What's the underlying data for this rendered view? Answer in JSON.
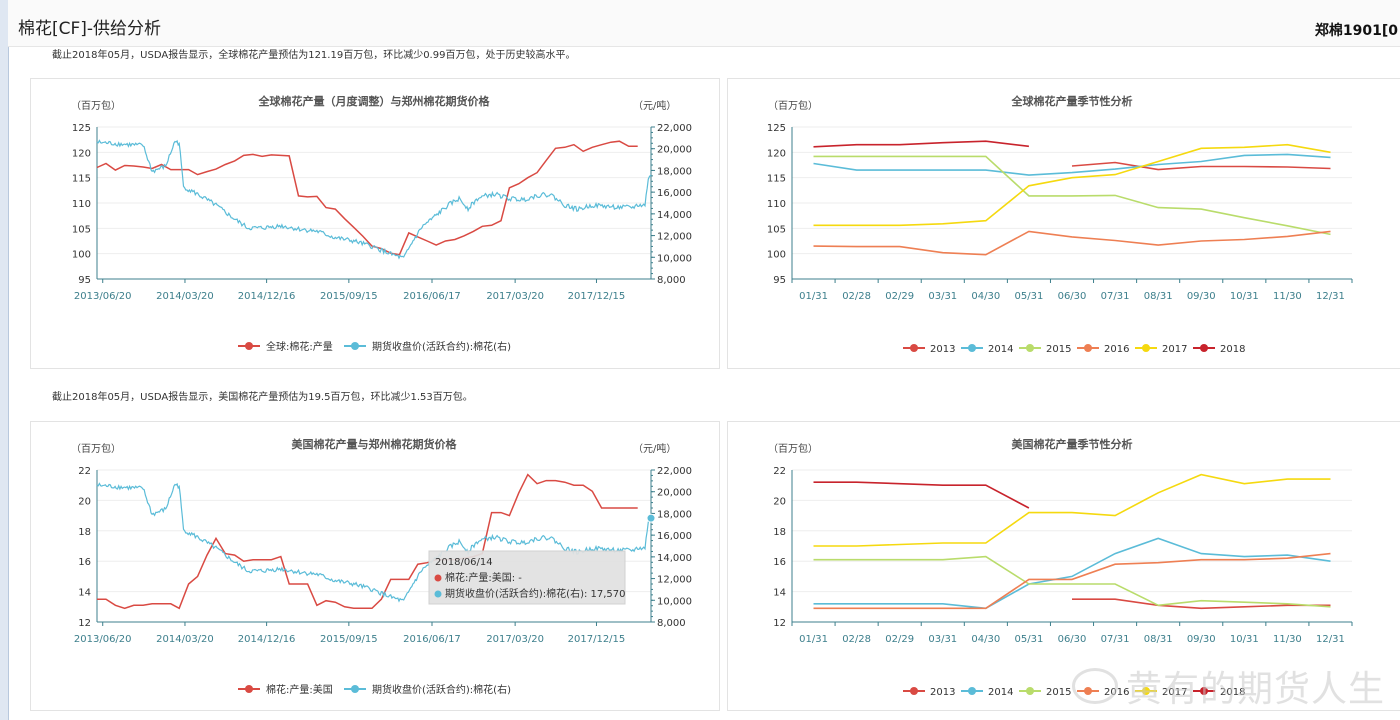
{
  "header": {
    "title": "棉花[CF]-供给分析",
    "contract": "郑棉1901[0"
  },
  "notes": {
    "global": "截止2018年05月，USDA报告显示，全球棉花产量预估为121.19百万包，环比减少0.99百万包，处于历史较高水平。",
    "us": "截止2018年05月，USDA报告显示，美国棉花产量预估为19.5百万包，环比减少1.53百万包。"
  },
  "colors": {
    "red": "#d94a43",
    "blue": "#5bbcd8",
    "green": "#b9dc6b",
    "orange": "#ee7f53",
    "yellow": "#f5d90f",
    "darkred": "#c8232c",
    "axis": "#3d7f8c",
    "grid": "#eeeeee"
  },
  "tooltip": {
    "date": "2018/06/14",
    "line1": "棉花:产量:美国: -",
    "line2": "期货收盘价(活跃合约):棉花(右): 17,570"
  },
  "watermark": "黄有的期货人生",
  "chart_data": [
    {
      "type": "line",
      "title": "全球棉花产量（月度调整）与郑州棉花期货价格",
      "yunit_left": "（百万包）",
      "yunit_right": "（元/吨）",
      "x_ticks": [
        "2013/06/20",
        "2014/03/20",
        "2014/12/16",
        "2015/09/15",
        "2016/06/17",
        "2017/03/20",
        "2017/12/15"
      ],
      "ylim_left": [
        95,
        125
      ],
      "yticks_left": [
        95,
        100,
        105,
        110,
        115,
        120,
        125
      ],
      "ylim_right": [
        8000,
        22000
      ],
      "yticks_right": [
        "8,000",
        "10,000",
        "12,000",
        "14,000",
        "16,000",
        "18,000",
        "20,000",
        "22,000"
      ],
      "series": [
        {
          "name": "全球:棉花:产量",
          "axis": "left",
          "style": "step",
          "x": [
            "2013/06/01",
            "2013/07/01",
            "2013/08/01",
            "2013/09/01",
            "2013/10/01",
            "2013/11/01",
            "2013/12/01",
            "2014/01/01",
            "2014/02/01",
            "2014/03/01",
            "2014/04/01",
            "2014/05/01",
            "2014/06/01",
            "2014/07/01",
            "2014/08/01",
            "2014/09/01",
            "2014/10/01",
            "2014/11/01",
            "2014/12/01",
            "2015/01/01",
            "2015/02/01",
            "2015/03/01",
            "2015/04/01",
            "2015/05/01",
            "2015/06/01",
            "2015/07/01",
            "2015/08/01",
            "2015/09/01",
            "2015/10/01",
            "2015/11/01",
            "2015/12/01",
            "2016/01/01",
            "2016/02/01",
            "2016/03/01",
            "2016/04/01",
            "2016/05/01",
            "2016/06/01",
            "2016/07/01",
            "2016/08/01",
            "2016/09/01",
            "2016/10/01",
            "2016/11/01",
            "2016/12/01",
            "2017/01/01",
            "2017/02/01",
            "2017/03/01",
            "2017/04/01",
            "2017/05/01",
            "2017/06/01",
            "2017/07/01",
            "2017/08/01",
            "2017/09/01",
            "2017/10/01",
            "2017/11/01",
            "2017/12/01",
            "2018/01/01",
            "2018/02/01",
            "2018/03/01",
            "2018/04/01",
            "2018/05/01"
          ],
          "values": [
            117.0,
            117.8,
            116.5,
            117.4,
            117.3,
            117.1,
            116.8,
            117.6,
            116.6,
            116.6,
            116.6,
            115.6,
            116.2,
            116.7,
            117.6,
            118.3,
            119.4,
            119.6,
            119.2,
            119.5,
            119.4,
            119.3,
            111.4,
            111.2,
            111.3,
            109.1,
            108.8,
            106.9,
            105.2,
            103.4,
            101.5,
            101.0,
            100.1,
            99.8,
            104.1,
            103.3,
            102.5,
            101.7,
            102.5,
            102.8,
            103.5,
            104.4,
            105.4,
            105.6,
            106.5,
            113.0,
            113.8,
            115.0,
            116.0,
            118.4,
            120.8,
            121.0,
            121.5,
            120.2,
            121.0,
            121.5,
            122.0,
            122.2,
            121.2,
            121.2
          ]
        },
        {
          "name": "期货收盘价(活跃合约):棉花(右)",
          "axis": "right",
          "style": "noisy",
          "x": [
            "2013/06/01",
            "2013/09/01",
            "2013/11/01",
            "2013/12/01",
            "2014/01/15",
            "2014/02/15",
            "2014/03/01",
            "2014/03/15",
            "2014/05/01",
            "2014/07/01",
            "2014/09/01",
            "2014/10/15",
            "2014/12/01",
            "2015/02/01",
            "2015/04/01",
            "2015/06/01",
            "2015/08/01",
            "2015/10/01",
            "2015/12/01",
            "2016/02/01",
            "2016/03/15",
            "2016/04/15",
            "2016/05/15",
            "2016/06/15",
            "2016/07/15",
            "2016/08/15",
            "2016/09/15",
            "2016/10/15",
            "2016/11/15",
            "2016/12/15",
            "2017/01/15",
            "2017/03/01",
            "2017/04/15",
            "2017/06/01",
            "2017/07/15",
            "2017/09/01",
            "2017/10/15",
            "2017/12/01",
            "2018/01/15",
            "2018/03/01",
            "2018/04/15",
            "2018/05/01",
            "2018/05/25",
            "2018/06/05",
            "2018/06/14"
          ],
          "values": [
            20600,
            20400,
            20300,
            17900,
            18400,
            20700,
            20500,
            16500,
            15800,
            14800,
            13500,
            12700,
            12700,
            12900,
            12600,
            12400,
            11800,
            11500,
            11000,
            10300,
            9900,
            11500,
            12800,
            13500,
            14200,
            14900,
            15400,
            14500,
            15400,
            15700,
            15800,
            15400,
            15300,
            15700,
            15800,
            14800,
            14400,
            14800,
            14700,
            14600,
            14600,
            14800,
            14800,
            17300,
            17570
          ]
        }
      ]
    },
    {
      "type": "line",
      "title": "全球棉花产量季节性分析",
      "yunit_left": "（百万包）",
      "categories": [
        "01/31",
        "02/28",
        "02/29",
        "03/31",
        "04/30",
        "05/31",
        "06/30",
        "07/31",
        "08/31",
        "09/30",
        "10/31",
        "11/30",
        "12/31"
      ],
      "ylim": [
        95,
        125
      ],
      "yticks": [
        95,
        100,
        105,
        110,
        115,
        120,
        125
      ],
      "series": [
        {
          "name": "2013",
          "color": "red",
          "values": [
            null,
            null,
            null,
            null,
            null,
            null,
            117.3,
            118.0,
            116.6,
            117.2,
            117.2,
            117.1,
            116.8
          ]
        },
        {
          "name": "2014",
          "color": "blue",
          "values": [
            117.8,
            116.5,
            116.5,
            116.5,
            116.5,
            115.5,
            116.0,
            116.7,
            117.6,
            118.2,
            119.4,
            119.6,
            119.0
          ]
        },
        {
          "name": "2015",
          "color": "green",
          "values": [
            119.2,
            119.2,
            119.2,
            119.2,
            119.2,
            111.4,
            111.4,
            111.5,
            109.1,
            108.8,
            107.1,
            105.5,
            103.8
          ]
        },
        {
          "name": "2016",
          "color": "orange",
          "values": [
            101.5,
            101.4,
            101.4,
            100.2,
            99.8,
            104.4,
            103.3,
            102.6,
            101.7,
            102.5,
            102.8,
            103.4,
            104.4
          ]
        },
        {
          "name": "2017",
          "color": "yellow",
          "values": [
            105.6,
            105.6,
            105.6,
            105.9,
            106.5,
            113.4,
            115.0,
            115.6,
            118.2,
            120.8,
            121.0,
            121.5,
            120.0
          ]
        },
        {
          "name": "2018",
          "color": "darkred",
          "values": [
            121.1,
            121.5,
            121.5,
            121.9,
            122.2,
            121.2,
            null,
            null,
            null,
            null,
            null,
            null,
            null
          ]
        }
      ]
    },
    {
      "type": "line",
      "title": "美国棉花产量与郑州棉花期货价格",
      "yunit_left": "（百万包）",
      "yunit_right": "（元/吨）",
      "x_ticks": [
        "2013/06/20",
        "2014/03/20",
        "2014/12/16",
        "2015/09/15",
        "2016/06/17",
        "2017/03/20",
        "2017/12/15"
      ],
      "ylim_left": [
        12,
        22
      ],
      "yticks_left": [
        12,
        14,
        16,
        18,
        20,
        22
      ],
      "ylim_right": [
        8000,
        22000
      ],
      "yticks_right": [
        "8,000",
        "10,000",
        "12,000",
        "14,000",
        "16,000",
        "18,000",
        "20,000",
        "22,000"
      ],
      "series": [
        {
          "name": "棉花:产量:美国",
          "axis": "left",
          "style": "step",
          "x": [
            "2013/06/01",
            "2013/07/01",
            "2013/08/01",
            "2013/09/01",
            "2013/10/01",
            "2013/11/01",
            "2013/12/01",
            "2014/01/01",
            "2014/02/01",
            "2014/03/01",
            "2014/04/01",
            "2014/05/01",
            "2014/06/01",
            "2014/07/01",
            "2014/08/01",
            "2014/09/01",
            "2014/10/01",
            "2014/11/01",
            "2014/12/01",
            "2015/01/01",
            "2015/02/01",
            "2015/03/01",
            "2015/04/01",
            "2015/05/01",
            "2015/06/01",
            "2015/07/01",
            "2015/08/01",
            "2015/09/01",
            "2015/10/01",
            "2015/11/01",
            "2015/12/01",
            "2016/01/01",
            "2016/02/01",
            "2016/03/01",
            "2016/04/01",
            "2016/05/01",
            "2016/06/01",
            "2016/07/01",
            "2016/08/01",
            "2016/09/01",
            "2016/10/01",
            "2016/11/01",
            "2016/12/01",
            "2017/01/01",
            "2017/02/01",
            "2017/03/01",
            "2017/04/01",
            "2017/05/01",
            "2017/06/01",
            "2017/07/01",
            "2017/08/01",
            "2017/09/01",
            "2017/10/01",
            "2017/11/01",
            "2017/12/01",
            "2018/01/01",
            "2018/02/01",
            "2018/03/01",
            "2018/04/01",
            "2018/05/01"
          ],
          "values": [
            13.5,
            13.5,
            13.1,
            12.9,
            13.1,
            13.1,
            13.2,
            13.2,
            13.2,
            12.9,
            14.5,
            15.0,
            16.4,
            17.5,
            16.5,
            16.4,
            16.0,
            16.1,
            16.1,
            16.1,
            16.3,
            14.5,
            14.5,
            14.5,
            13.1,
            13.4,
            13.3,
            13.0,
            12.9,
            12.9,
            12.9,
            13.5,
            14.8,
            14.8,
            14.8,
            15.8,
            15.9,
            16.1,
            16.1,
            16.1,
            16.2,
            16.3,
            16.5,
            19.2,
            19.2,
            19.0,
            20.5,
            21.7,
            21.1,
            21.3,
            21.3,
            21.2,
            21.0,
            21.0,
            20.6,
            19.5,
            19.5,
            19.5,
            19.5,
            19.5
          ]
        },
        {
          "name": "期货收盘价(活跃合约):棉花(右)",
          "axis": "right",
          "style": "noisy",
          "x": [
            "2013/06/01",
            "2013/09/01",
            "2013/11/01",
            "2013/12/01",
            "2014/01/15",
            "2014/02/15",
            "2014/03/01",
            "2014/03/15",
            "2014/05/01",
            "2014/07/01",
            "2014/09/01",
            "2014/10/15",
            "2014/12/01",
            "2015/02/01",
            "2015/04/01",
            "2015/06/01",
            "2015/08/01",
            "2015/10/01",
            "2015/12/01",
            "2016/02/01",
            "2016/03/15",
            "2016/04/15",
            "2016/05/15",
            "2016/06/15",
            "2016/07/15",
            "2016/08/15",
            "2016/09/15",
            "2016/10/15",
            "2016/11/15",
            "2016/12/15",
            "2017/01/15",
            "2017/03/01",
            "2017/04/15",
            "2017/06/01",
            "2017/07/15",
            "2017/09/01",
            "2017/10/15",
            "2017/12/01",
            "2018/01/15",
            "2018/03/01",
            "2018/04/15",
            "2018/05/01",
            "2018/05/25",
            "2018/06/05",
            "2018/06/14"
          ],
          "values": [
            20600,
            20400,
            20300,
            17900,
            18400,
            20700,
            20500,
            16500,
            15800,
            14800,
            13500,
            12700,
            12700,
            12900,
            12600,
            12400,
            11800,
            11500,
            11000,
            10300,
            9900,
            11500,
            12800,
            13500,
            14200,
            14900,
            15400,
            14500,
            15400,
            15700,
            15800,
            15400,
            15300,
            15700,
            15800,
            14800,
            14400,
            14800,
            14700,
            14600,
            14600,
            14800,
            14800,
            17300,
            17570
          ]
        }
      ]
    },
    {
      "type": "line",
      "title": "美国棉花产量季节性分析",
      "yunit_left": "（百万包）",
      "categories": [
        "01/31",
        "02/28",
        "02/29",
        "03/31",
        "04/30",
        "05/31",
        "06/30",
        "07/31",
        "08/31",
        "09/30",
        "10/31",
        "11/30",
        "12/31"
      ],
      "ylim": [
        12,
        22
      ],
      "yticks": [
        12,
        14,
        16,
        18,
        20,
        22
      ],
      "series": [
        {
          "name": "2013",
          "color": "red",
          "values": [
            null,
            null,
            null,
            null,
            null,
            null,
            13.5,
            13.5,
            13.1,
            12.9,
            13.0,
            13.1,
            13.1
          ]
        },
        {
          "name": "2014",
          "color": "blue",
          "values": [
            13.2,
            13.2,
            13.2,
            13.2,
            12.9,
            14.5,
            15.0,
            16.5,
            17.5,
            16.5,
            16.3,
            16.4,
            16.0
          ]
        },
        {
          "name": "2015",
          "color": "green",
          "values": [
            16.1,
            16.1,
            16.1,
            16.1,
            16.3,
            14.5,
            14.5,
            14.5,
            13.1,
            13.4,
            13.3,
            13.2,
            13.0
          ]
        },
        {
          "name": "2016",
          "color": "orange",
          "values": [
            12.9,
            12.9,
            12.9,
            12.9,
            12.9,
            14.8,
            14.8,
            15.8,
            15.9,
            16.1,
            16.1,
            16.2,
            16.5
          ]
        },
        {
          "name": "2017",
          "color": "yellow",
          "values": [
            17.0,
            17.0,
            17.1,
            17.2,
            17.2,
            19.2,
            19.2,
            19.0,
            20.5,
            21.7,
            21.1,
            21.4,
            21.4
          ]
        },
        {
          "name": "2018",
          "color": "darkred",
          "values": [
            21.2,
            21.2,
            21.1,
            21.0,
            21.0,
            19.5,
            null,
            null,
            null,
            null,
            null,
            null,
            null
          ]
        }
      ]
    }
  ]
}
